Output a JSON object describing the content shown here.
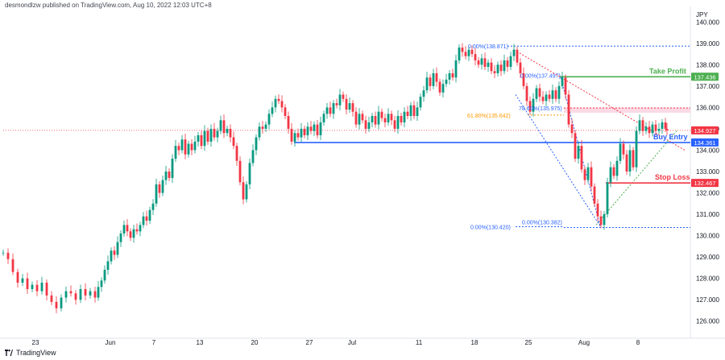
{
  "header": {
    "publisher_line": "desmondlzw published on TradingView.com, Aug 10, 2022 12:03 UTC+8"
  },
  "footer": {
    "brand": "TradingView"
  },
  "chart_data": {
    "type": "candlestick",
    "currency_label": "JPY",
    "ylim": [
      125.5,
      140.5
    ],
    "y_ticks": [
      "140.000",
      "139.000",
      "138.000",
      "137.000",
      "136.000",
      "135.000",
      "134.000",
      "133.000",
      "132.000",
      "131.000",
      "130.000",
      "129.000",
      "128.000",
      "127.000",
      "126.000"
    ],
    "x_ticks": [
      "23",
      "Jun",
      "7",
      "13",
      "20",
      "27",
      "Jul",
      "11",
      "18",
      "25",
      "Aug",
      "8"
    ],
    "price_path": [
      [
        0,
        129.2
      ],
      [
        6,
        128.9
      ],
      [
        12,
        128.3
      ],
      [
        18,
        127.8
      ],
      [
        24,
        128.0
      ],
      [
        30,
        127.5
      ],
      [
        36,
        127.7
      ],
      [
        42,
        127.4
      ],
      [
        48,
        127.8
      ],
      [
        54,
        127.2
      ],
      [
        60,
        126.9
      ],
      [
        66,
        126.6
      ],
      [
        72,
        127.1
      ],
      [
        78,
        127.4
      ],
      [
        84,
        127.3
      ],
      [
        90,
        127.0
      ],
      [
        96,
        127.5
      ],
      [
        102,
        127.2
      ],
      [
        108,
        127.4
      ],
      [
        114,
        127.1
      ],
      [
        118,
        127.6
      ],
      [
        122,
        127.9
      ],
      [
        126,
        128.4
      ],
      [
        130,
        128.8
      ],
      [
        134,
        129.3
      ],
      [
        138,
        129.1
      ],
      [
        142,
        129.7
      ],
      [
        146,
        130.1
      ],
      [
        150,
        130.5
      ],
      [
        154,
        130.2
      ],
      [
        158,
        129.9
      ],
      [
        162,
        130.3
      ],
      [
        166,
        130.2
      ],
      [
        170,
        130.5
      ],
      [
        174,
        130.9
      ],
      [
        178,
        130.7
      ],
      [
        182,
        131.2
      ],
      [
        186,
        131.5
      ],
      [
        190,
        132.4
      ],
      [
        194,
        132.0
      ],
      [
        198,
        132.6
      ],
      [
        202,
        133.0
      ],
      [
        206,
        132.7
      ],
      [
        210,
        133.6
      ],
      [
        214,
        134.2
      ],
      [
        218,
        134.0
      ],
      [
        222,
        134.5
      ],
      [
        226,
        133.8
      ],
      [
        230,
        134.3
      ],
      [
        234,
        134.0
      ],
      [
        238,
        134.4
      ],
      [
        242,
        134.7
      ],
      [
        246,
        134.2
      ],
      [
        250,
        134.9
      ],
      [
        254,
        134.4
      ],
      [
        258,
        135.0
      ],
      [
        262,
        134.6
      ],
      [
        266,
        134.9
      ],
      [
        270,
        135.4
      ],
      [
        274,
        134.8
      ],
      [
        278,
        135.0
      ],
      [
        282,
        134.6
      ],
      [
        286,
        134.2
      ],
      [
        290,
        133.5
      ],
      [
        294,
        132.5
      ],
      [
        298,
        131.7
      ],
      [
        302,
        132.4
      ],
      [
        306,
        133.4
      ],
      [
        310,
        134.0
      ],
      [
        314,
        134.6
      ],
      [
        318,
        135.1
      ],
      [
        322,
        135.0
      ],
      [
        326,
        135.2
      ],
      [
        330,
        135.7
      ],
      [
        334,
        136.0
      ],
      [
        338,
        136.4
      ],
      [
        342,
        136.3
      ],
      [
        346,
        136.0
      ],
      [
        350,
        135.6
      ],
      [
        354,
        135.0
      ],
      [
        358,
        134.4
      ],
      [
        362,
        134.8
      ],
      [
        366,
        134.6
      ],
      [
        370,
        135.0
      ],
      [
        374,
        134.7
      ],
      [
        378,
        135.1
      ],
      [
        382,
        134.9
      ],
      [
        386,
        135.2
      ],
      [
        390,
        134.7
      ],
      [
        394,
        135.3
      ],
      [
        398,
        135.7
      ],
      [
        402,
        136.0
      ],
      [
        406,
        135.7
      ],
      [
        410,
        136.2
      ],
      [
        414,
        136.1
      ],
      [
        418,
        136.6
      ],
      [
        422,
        136.4
      ],
      [
        426,
        135.9
      ],
      [
        430,
        136.2
      ],
      [
        434,
        135.8
      ],
      [
        438,
        135.2
      ],
      [
        442,
        135.7
      ],
      [
        446,
        135.4
      ],
      [
        450,
        135.0
      ],
      [
        454,
        135.3
      ],
      [
        458,
        135.6
      ],
      [
        462,
        135.2
      ],
      [
        466,
        135.8
      ],
      [
        470,
        135.5
      ],
      [
        474,
        135.3
      ],
      [
        478,
        135.7
      ],
      [
        482,
        135.4
      ],
      [
        486,
        135.0
      ],
      [
        490,
        135.6
      ],
      [
        494,
        135.3
      ],
      [
        498,
        135.8
      ],
      [
        502,
        135.6
      ],
      [
        506,
        136.1
      ],
      [
        510,
        135.6
      ],
      [
        514,
        136.0
      ],
      [
        518,
        136.5
      ],
      [
        522,
        136.8
      ],
      [
        526,
        137.4
      ],
      [
        530,
        137.0
      ],
      [
        534,
        137.6
      ],
      [
        538,
        137.2
      ],
      [
        542,
        136.7
      ],
      [
        546,
        137.1
      ],
      [
        550,
        137.3
      ],
      [
        554,
        137.6
      ],
      [
        558,
        137.4
      ],
      [
        562,
        138.2
      ],
      [
        566,
        138.8
      ],
      [
        570,
        138.6
      ],
      [
        574,
        138.4
      ],
      [
        578,
        138.7
      ],
      [
        582,
        138.5
      ],
      [
        586,
        138.2
      ],
      [
        590,
        138.0
      ],
      [
        594,
        138.3
      ],
      [
        598,
        137.9
      ],
      [
        602,
        138.1
      ],
      [
        606,
        137.7
      ],
      [
        610,
        137.6
      ],
      [
        614,
        138.0
      ],
      [
        618,
        137.7
      ],
      [
        622,
        138.2
      ],
      [
        626,
        137.9
      ],
      [
        630,
        138.4
      ],
      [
        634,
        138.7
      ],
      [
        638,
        138.1
      ],
      [
        642,
        137.6
      ],
      [
        646,
        137.0
      ],
      [
        650,
        136.3
      ],
      [
        654,
        135.8
      ],
      [
        658,
        136.4
      ],
      [
        662,
        136.9
      ],
      [
        666,
        136.5
      ],
      [
        670,
        136.3
      ],
      [
        674,
        136.6
      ],
      [
        678,
        136.4
      ],
      [
        682,
        136.8
      ],
      [
        686,
        136.4
      ],
      [
        690,
        137.0
      ],
      [
        694,
        137.4
      ],
      [
        698,
        136.6
      ],
      [
        702,
        135.2
      ],
      [
        706,
        134.8
      ],
      [
        710,
        133.6
      ],
      [
        714,
        134.2
      ],
      [
        718,
        133.1
      ],
      [
        722,
        132.6
      ],
      [
        726,
        133.2
      ],
      [
        730,
        132.3
      ],
      [
        734,
        131.5
      ],
      [
        738,
        130.9
      ],
      [
        742,
        130.5
      ],
      [
        746,
        131.0
      ],
      [
        750,
        132.5
      ],
      [
        754,
        133.2
      ],
      [
        758,
        132.8
      ],
      [
        762,
        133.5
      ],
      [
        766,
        134.3
      ],
      [
        770,
        133.8
      ],
      [
        774,
        133.0
      ],
      [
        778,
        134.0
      ],
      [
        782,
        133.2
      ],
      [
        786,
        134.9
      ],
      [
        790,
        135.4
      ],
      [
        794,
        134.9
      ],
      [
        798,
        135.1
      ],
      [
        802,
        134.8
      ],
      [
        806,
        135.2
      ],
      [
        810,
        134.9
      ],
      [
        814,
        135.0
      ],
      [
        818,
        135.3
      ],
      [
        822,
        135.0
      ],
      [
        824,
        134.93
      ]
    ],
    "levels": [
      {
        "label": "Take Profit",
        "value": 137.436,
        "value_label": "137.436",
        "color": "#4caf50"
      },
      {
        "label": "Buy Entry",
        "value": 134.361,
        "value_label": "134.361",
        "color": "#2962ff"
      },
      {
        "label": "Stop Loss",
        "value": 132.467,
        "value_label": "132.467",
        "color": "#f23645"
      }
    ],
    "current_price": {
      "value": 134.927,
      "value_label": "134.927",
      "color": "#f23645"
    },
    "fib_labels": {
      "top": "0.00%(138.871)",
      "tp": "0.00%(137.497)",
      "r786": "78.60%(135.975)",
      "r618": "61.80%(135.642)",
      "low_a": "0.00%(130.420)",
      "low_b": "0.00%(130.382)"
    },
    "resistance_zone": [
      135.75,
      136.0
    ]
  }
}
